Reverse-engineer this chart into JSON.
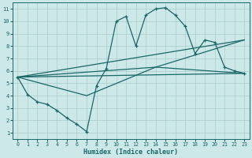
{
  "xlabel": "Humidex (Indice chaleur)",
  "bg_color": "#cce8e8",
  "grid_color": "#aacccc",
  "line_color": "#1a6868",
  "xlim": [
    -0.5,
    23.5
  ],
  "ylim": [
    0.5,
    11.5
  ],
  "xticks": [
    0,
    1,
    2,
    3,
    4,
    5,
    6,
    7,
    8,
    9,
    10,
    11,
    12,
    13,
    14,
    15,
    16,
    17,
    18,
    19,
    20,
    21,
    22,
    23
  ],
  "yticks": [
    1,
    2,
    3,
    4,
    5,
    6,
    7,
    8,
    9,
    10,
    11
  ],
  "curve1_x": [
    0,
    1,
    2,
    3,
    4,
    5,
    6,
    7,
    8,
    9,
    10,
    11,
    12,
    13,
    14,
    15,
    16,
    17,
    18,
    19,
    20,
    21,
    22,
    23
  ],
  "curve1_y": [
    5.5,
    4.1,
    3.5,
    3.3,
    2.8,
    2.2,
    1.7,
    1.1,
    4.8,
    6.2,
    10.0,
    10.4,
    8.0,
    10.5,
    11.0,
    11.1,
    10.5,
    9.6,
    7.4,
    8.5,
    8.3,
    6.3,
    6.0,
    5.8
  ],
  "line1_x": [
    0,
    23
  ],
  "line1_y": [
    5.5,
    5.8
  ],
  "line2_x": [
    0,
    23
  ],
  "line2_y": [
    5.5,
    8.5
  ],
  "line3_x": [
    0,
    14,
    23
  ],
  "line3_y": [
    5.5,
    6.3,
    8.5
  ],
  "line4_x": [
    0,
    7,
    14,
    23
  ],
  "line4_y": [
    5.5,
    4.0,
    6.3,
    5.8
  ]
}
